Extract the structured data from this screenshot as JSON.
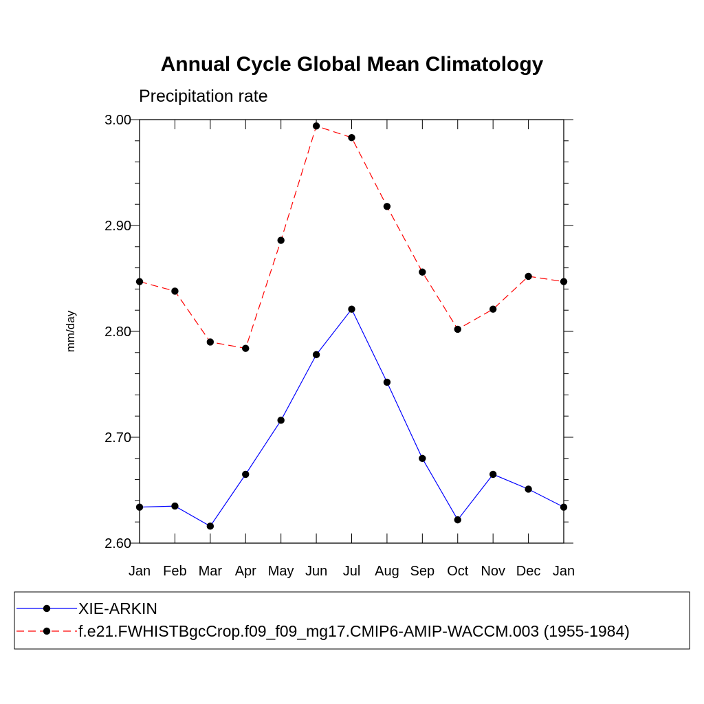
{
  "chart_data": {
    "type": "line",
    "title": "Annual Cycle Global Mean Climatology",
    "subtitle": "Precipitation rate",
    "xlabel": "",
    "ylabel": "mm/day",
    "categories": [
      "Jan",
      "Feb",
      "Mar",
      "Apr",
      "May",
      "Jun",
      "Jul",
      "Aug",
      "Sep",
      "Oct",
      "Nov",
      "Dec",
      "Jan"
    ],
    "ylim": [
      2.6,
      3.0
    ],
    "yticks": [
      "2.60",
      "2.70",
      "2.80",
      "2.90",
      "3.00"
    ],
    "grid": false,
    "legend_position": "bottom",
    "series": [
      {
        "name": "XIE-ARKIN",
        "color": "#0000ff",
        "line_style": "solid",
        "marker": "filled-circle",
        "values": [
          2.634,
          2.635,
          2.616,
          2.665,
          2.716,
          2.778,
          2.821,
          2.752,
          2.68,
          2.622,
          2.665,
          2.651,
          2.634
        ]
      },
      {
        "name": "f.e21.FWHISTBgcCrop.f09_f09_mg17.CMIP6-AMIP-WACCM.003 (1955-1984)",
        "color": "#ff0000",
        "line_style": "dashed",
        "marker": "filled-circle",
        "values": [
          2.847,
          2.838,
          2.79,
          2.784,
          2.886,
          2.994,
          2.983,
          2.918,
          2.856,
          2.802,
          2.821,
          2.852,
          2.847
        ]
      }
    ]
  }
}
